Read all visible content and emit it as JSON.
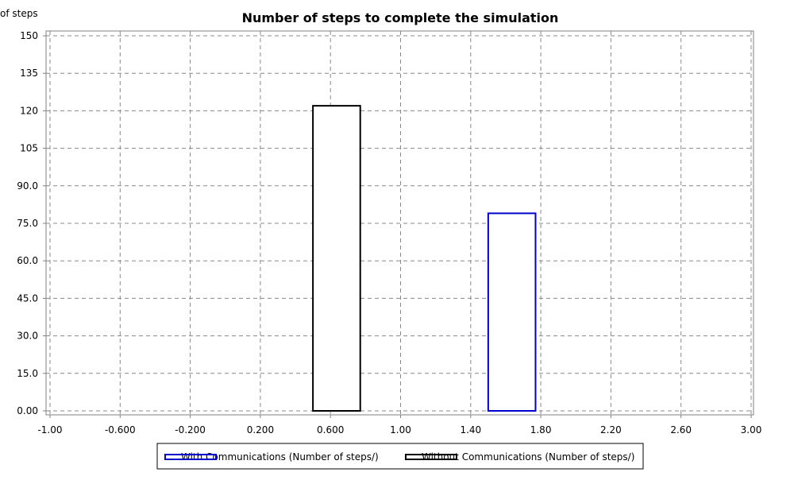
{
  "chart_data": {
    "type": "bar",
    "title": "Number of steps to complete the simulation",
    "xlabel": "",
    "ylabel": "of steps",
    "xlim": [
      -1.0,
      3.0
    ],
    "ylim": [
      0,
      152
    ],
    "x_ticks": [
      "-1.00",
      "-0.600",
      "-0.200",
      "0.200",
      "0.600",
      "1.00",
      "1.40",
      "1.80",
      "2.20",
      "2.60",
      "3.00"
    ],
    "y_ticks": [
      "0.00",
      "15.0",
      "30.0",
      "45.0",
      "60.0",
      "75.0",
      "90.0",
      "105",
      "120",
      "135",
      "150"
    ],
    "grid": true,
    "legend_position": "bottom",
    "series": [
      {
        "name": "With Communications (Number of steps/)",
        "color": "#0000cc",
        "x_start": 1.5,
        "x_end": 1.77,
        "value": 79
      },
      {
        "name": "Without Communications (Number of steps/)",
        "color": "#000000",
        "x_start": 0.5,
        "x_end": 0.77,
        "value": 122
      }
    ]
  }
}
